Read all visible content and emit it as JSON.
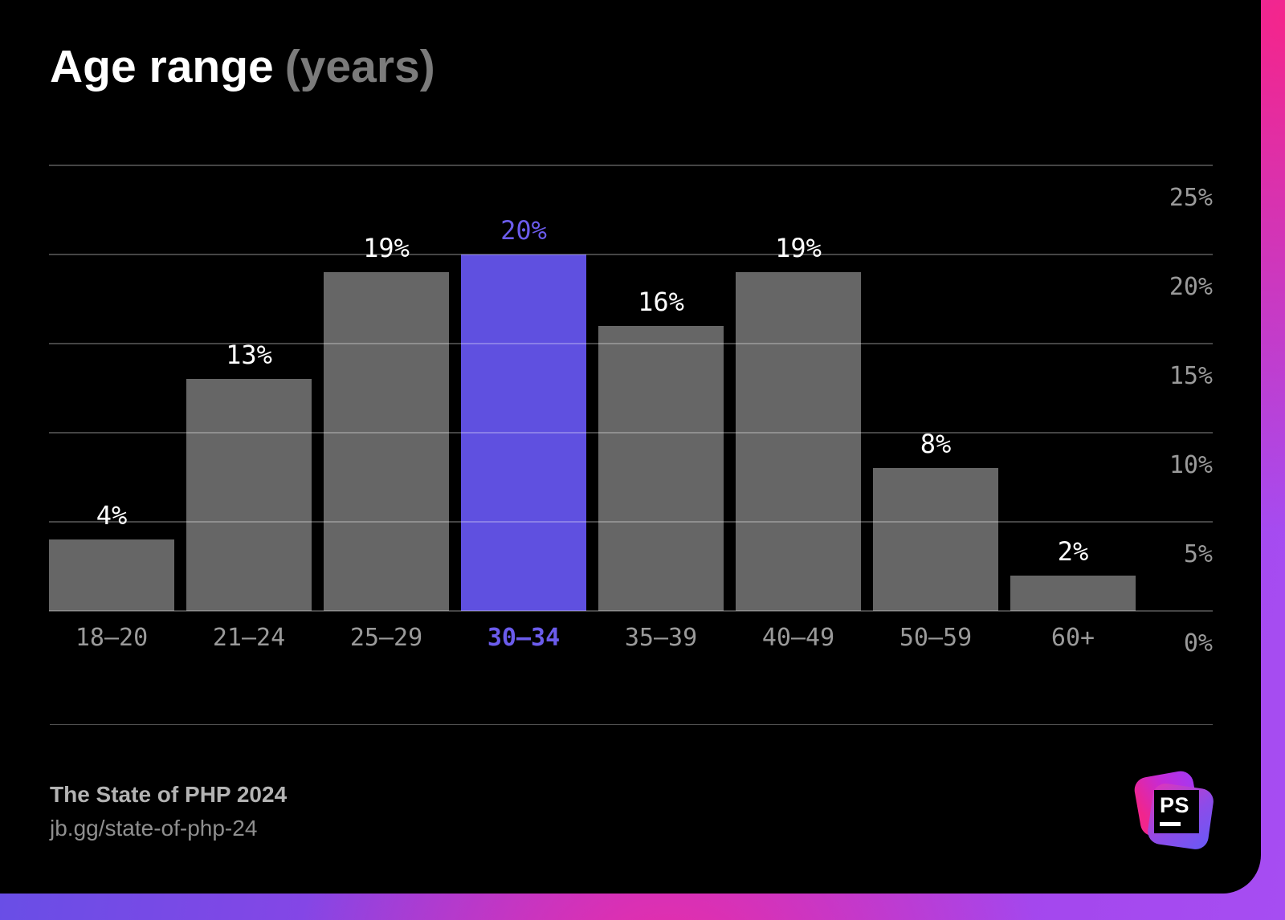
{
  "title": {
    "main": "Age range",
    "secondary": "(years)"
  },
  "chart_data": {
    "type": "bar",
    "title": "Age range (years)",
    "categories": [
      "18–20",
      "21–24",
      "25–29",
      "30–34",
      "35–39",
      "40–49",
      "50–59",
      "60+"
    ],
    "values": [
      4,
      13,
      19,
      20,
      16,
      19,
      8,
      2
    ],
    "value_labels": [
      "4%",
      "13%",
      "19%",
      "20%",
      "16%",
      "19%",
      "8%",
      "2%"
    ],
    "highlight_index": 3,
    "highlight_category": "30–34",
    "y_ticks": [
      "25%",
      "20%",
      "15%",
      "10%",
      "5%",
      "0%"
    ],
    "ylim": [
      0,
      25
    ],
    "grid": true,
    "legend": "none",
    "xlabel": "",
    "ylabel": ""
  },
  "footer": {
    "line1": "The State of PHP 2024",
    "line2": "jb.gg/state-of-php-24"
  },
  "logo": {
    "text": "PS"
  },
  "colors": {
    "card_bg": "#000000",
    "bar_default": "#666666",
    "bar_highlight": "#5F50E0",
    "highlight_text": "#6B5CEC",
    "value_label": "#FFFFFF",
    "tick_label": "#9A9A9A",
    "title_primary": "#FFFFFF",
    "title_secondary": "#7B7B7B",
    "gridline": "rgba(255,255,255,0.27)",
    "divider": "#4F4F4F",
    "footer_primary": "#B3B3B3",
    "footer_secondary": "#8F8F8F",
    "gradient_pink": "#F4258C",
    "gradient_magenta": "#EE2BA2",
    "gradient_indigo": "#5B52E6",
    "gradient_purple": "#A64DF2"
  }
}
